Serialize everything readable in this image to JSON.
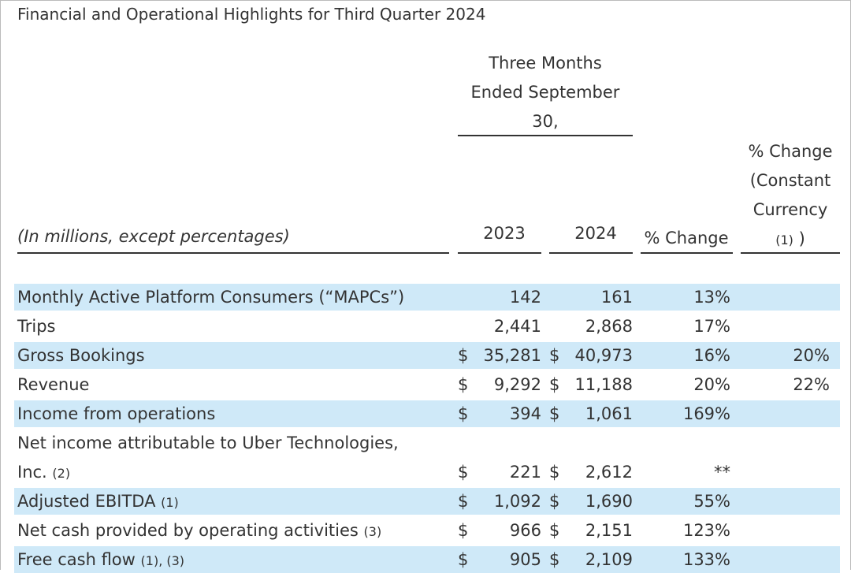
{
  "title": "Financial and Operational Highlights for Third Quarter 2024",
  "table": {
    "period_header": [
      "Three Months",
      "Ended September",
      "30,"
    ],
    "cc_header": [
      "% Change",
      "(Constant",
      "Currency"
    ],
    "cc_header_note": "(1)",
    "cc_header_close": ")",
    "units": "(In millions, except percentages)",
    "columns": [
      "2023",
      "2024",
      "% Change"
    ],
    "rows": [
      {
        "label": [
          "Monthly Active Platform Consumers (“MAPCs”)"
        ],
        "y2023": "142",
        "y2024": "161",
        "change": "13%"
      },
      {
        "label": [
          "Trips"
        ],
        "y2023": "2,441",
        "y2024": "2,868",
        "change": "17%"
      },
      {
        "label": [
          "Gross Bookings"
        ],
        "currency": "$",
        "y2023": "35,281",
        "y2024": "40,973",
        "change": "16%",
        "cc_change": "20%"
      },
      {
        "label": [
          "Revenue"
        ],
        "currency": "$",
        "y2023": "9,292",
        "y2024": "11,188",
        "change": "20%",
        "cc_change": "22%"
      },
      {
        "label": [
          "Income from operations"
        ],
        "currency": "$",
        "y2023": "394",
        "y2024": "1,061",
        "change": "169%"
      },
      {
        "label": [
          "Net income attributable to Uber Technologies,",
          "Inc."
        ],
        "note": "(2)",
        "currency": "$",
        "y2023": "221",
        "y2024": "2,612",
        "change": "**"
      },
      {
        "label": [
          "Adjusted EBITDA"
        ],
        "note": "(1)",
        "currency": "$",
        "y2023": "1,092",
        "y2024": "1,690",
        "change": "55%"
      },
      {
        "label": [
          "Net cash provided by operating activities"
        ],
        "note": "(3)",
        "currency": "$",
        "y2023": "966",
        "y2024": "2,151",
        "change": "123%"
      },
      {
        "label": [
          "Free cash flow"
        ],
        "note": "(1), (3)",
        "currency": "$",
        "y2023": "905",
        "y2024": "2,109",
        "change": "133%"
      }
    ]
  }
}
